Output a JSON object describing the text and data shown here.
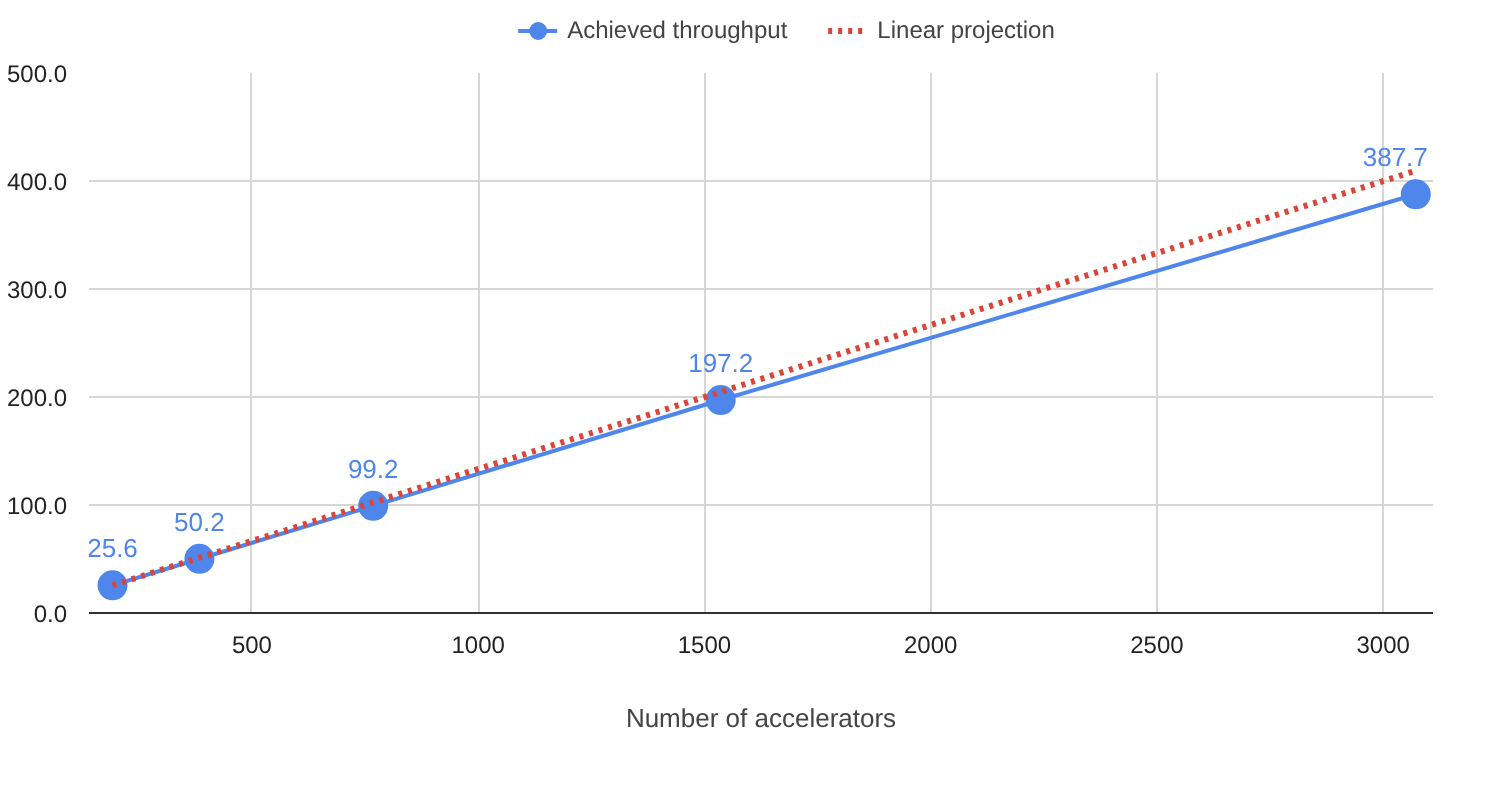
{
  "chart_data": {
    "type": "line",
    "xlabel": "Number of accelerators",
    "x": [
      192,
      384,
      768,
      1536,
      3072
    ],
    "series": [
      {
        "name": "Achieved throughput",
        "color": "#4f86ec",
        "values": [
          25.6,
          50.2,
          99.2,
          197.2,
          387.7
        ],
        "marker": "circle",
        "line_style": "solid",
        "value_labels": [
          "25.6",
          "50.2",
          "99.2",
          "197.2",
          "387.7"
        ]
      },
      {
        "name": "Linear projection",
        "color": "#db4437",
        "values": [
          25.6,
          51.2,
          102.4,
          204.8,
          409.6
        ],
        "marker": "none",
        "line_style": "dotted"
      }
    ],
    "xlim": [
      140,
      3110
    ],
    "xticks": [
      500,
      1000,
      1500,
      2000,
      2500,
      3000
    ],
    "ylim": [
      0,
      500
    ],
    "yticks": [
      {
        "value": 0,
        "label": "0.0"
      },
      {
        "value": 100,
        "label": "100.0"
      },
      {
        "value": 200,
        "label": "200.0"
      },
      {
        "value": 300,
        "label": "300.0"
      },
      {
        "value": 400,
        "label": "400.0"
      },
      {
        "value": 500,
        "label": "500.0"
      }
    ],
    "grid": true,
    "legend": "top"
  }
}
